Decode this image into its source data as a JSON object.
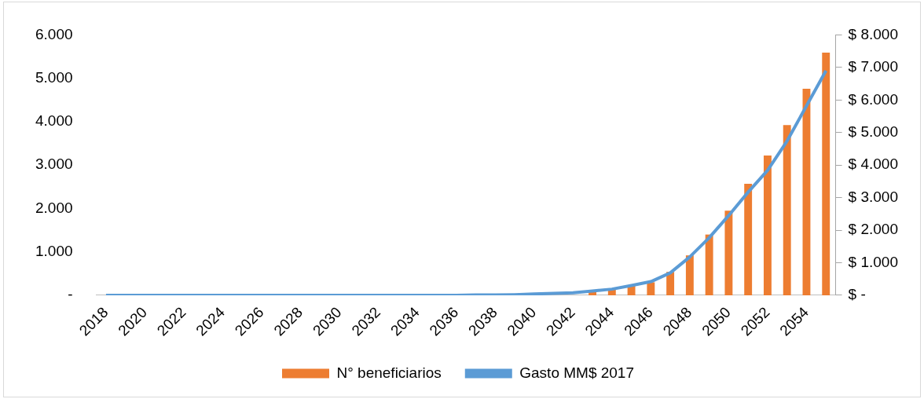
{
  "chart_data": {
    "type": "bar",
    "categories": [
      "2018",
      null,
      "2020",
      null,
      "2022",
      null,
      "2024",
      null,
      "2026",
      null,
      "2028",
      null,
      "2030",
      null,
      "2032",
      null,
      "2034",
      null,
      "2036",
      null,
      "2038",
      null,
      "2040",
      null,
      "2042",
      null,
      "2044",
      null,
      "2046",
      null,
      "2048",
      null,
      "2050",
      null,
      "2052",
      null,
      "2054",
      null
    ],
    "series": [
      {
        "name": "N° beneficiarios",
        "color": "#ed7d31",
        "values": [
          0,
          0,
          0,
          0,
          0,
          0,
          0,
          0,
          0,
          0,
          0,
          0,
          0,
          0,
          0,
          0,
          0,
          0,
          0,
          0,
          0,
          0,
          null,
          null,
          null,
          100,
          160,
          220,
          300,
          540,
          920,
          1400,
          1950,
          2570,
          3220,
          3920,
          4760,
          5590
        ]
      },
      {
        "name": "Gasto MM$ 2017",
        "type": "line",
        "axis": "y2",
        "color": "#5b9bd5",
        "values": [
          0,
          0,
          0,
          0,
          0,
          0,
          0,
          0,
          0,
          0,
          0,
          0,
          0,
          0,
          0,
          0,
          0,
          0,
          0,
          10,
          10,
          20,
          40,
          60,
          80,
          130,
          190,
          300,
          420,
          690,
          1180,
          1770,
          2450,
          3170,
          3840,
          4740,
          5820,
          6900
        ]
      }
    ],
    "ylim": [
      0,
      6000
    ],
    "yticks": [
      {
        "value": 0,
        "label": "-"
      },
      {
        "value": 1000,
        "label": "1.000"
      },
      {
        "value": 2000,
        "label": "2.000"
      },
      {
        "value": 3000,
        "label": "3.000"
      },
      {
        "value": 4000,
        "label": "4.000"
      },
      {
        "value": 5000,
        "label": "5.000"
      },
      {
        "value": 6000,
        "label": "6.000"
      }
    ],
    "y2lim": [
      0,
      8000
    ],
    "y2ticks": [
      {
        "value": 0,
        "label": "$ -"
      },
      {
        "value": 1000,
        "label": "$ 1.000"
      },
      {
        "value": 2000,
        "label": "$ 2.000"
      },
      {
        "value": 3000,
        "label": "$ 3.000"
      },
      {
        "value": 4000,
        "label": "$ 4.000"
      },
      {
        "value": 5000,
        "label": "$ 5.000"
      },
      {
        "value": 6000,
        "label": "$ 6.000"
      },
      {
        "value": 7000,
        "label": "$ 7.000"
      },
      {
        "value": 8000,
        "label": "$ 8.000"
      }
    ],
    "grid": false,
    "legend": "bottom",
    "marker": "none",
    "line_style": "solid"
  }
}
